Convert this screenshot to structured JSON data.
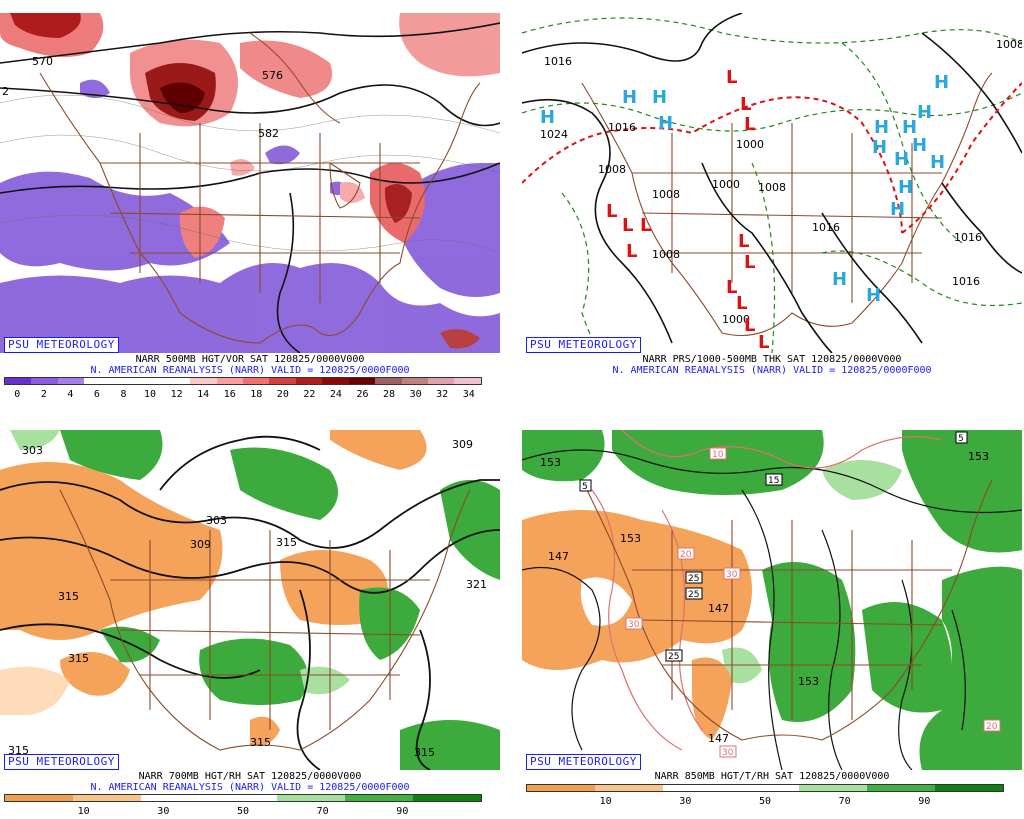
{
  "logo_text": "PSU METEOROLOGY",
  "colors": {
    "brown": "#8b4a2b",
    "blue_text": "#1a1aff"
  },
  "panels": [
    {
      "id": "p1",
      "title": "NARR 500MB HGT/VOR SAT 120825/0000V000",
      "subtitle": "N. AMERICAN REANALYSIS (NARR) VALID = 120825/0000F000",
      "colorbar_colors": [
        "#6a2fd0",
        "#8b5be0",
        "#a67fe8",
        "#ffffff",
        "#ffffff",
        "#ffffff",
        "#ffffff",
        "#ffc8c8",
        "#ff9e9e",
        "#f47070",
        "#d84040",
        "#b01c1c",
        "#8a0a0a",
        "#6a0000",
        "#a06060",
        "#c08080",
        "#e0a0b0",
        "#f0c0d0"
      ],
      "colorbar_labels": [
        "0",
        "2",
        "4",
        "6",
        "8",
        "10",
        "12",
        "14",
        "16",
        "18",
        "20",
        "22",
        "24",
        "26",
        "28",
        "30",
        "32",
        "34"
      ],
      "contour_labels": [
        "570",
        "576",
        "582",
        "2"
      ]
    },
    {
      "id": "p2",
      "title": "NARR PRS/1000-500MB THK SAT 120825/0000V000",
      "subtitle": "N. AMERICAN REANALYSIS (NARR) VALID = 120825/0000F000",
      "colorbar_colors": [],
      "colorbar_labels": [],
      "contour_labels": [
        "1016",
        "1024",
        "1016",
        "1008",
        "1008",
        "1000",
        "1008",
        "1016",
        "1008",
        "1000",
        "1016",
        "1016",
        "1008",
        "1008",
        "1000"
      ],
      "highs": [
        "H",
        "H",
        "H",
        "H",
        "H",
        "H",
        "H",
        "H",
        "H",
        "H",
        "H",
        "H",
        "H",
        "H",
        "H",
        "H"
      ],
      "lows": [
        "L",
        "L",
        "L",
        "L",
        "L",
        "L",
        "L",
        "L",
        "L",
        "L",
        "L",
        "L",
        "L"
      ]
    },
    {
      "id": "p3",
      "title": "NARR 700MB HGT/RH SAT 120825/0000V000",
      "subtitle": "N. AMERICAN REANALYSIS (NARR) VALID = 120825/0000F000",
      "colorbar_colors": [
        "#f0a050",
        "#f8c48a",
        "#ffffff",
        "#ffffff",
        "#a8e0a0",
        "#40b040",
        "#108010"
      ],
      "colorbar_labels": [
        "10",
        "30",
        "50",
        "70",
        "90"
      ],
      "contour_labels": [
        "303",
        "309",
        "303",
        "309",
        "315",
        "315",
        "321",
        "315",
        "315",
        "315",
        "315"
      ]
    },
    {
      "id": "p4",
      "title": "NARR 850MB HGT/T/RH SAT 120825/0000V000",
      "subtitle": "",
      "colorbar_colors": [
        "#f0a050",
        "#f8c48a",
        "#ffffff",
        "#ffffff",
        "#a8e0a0",
        "#40b040",
        "#108010"
      ],
      "colorbar_labels": [
        "10",
        "30",
        "50",
        "70",
        "90"
      ],
      "contour_labels": [
        "147",
        "153",
        "153",
        "147",
        "147",
        "153",
        "153"
      ],
      "boxed_labels": [
        "5",
        "10",
        "15",
        "20",
        "25",
        "25",
        "30",
        "30",
        "25",
        "30",
        "20",
        "5",
        "147",
        "153"
      ]
    }
  ]
}
